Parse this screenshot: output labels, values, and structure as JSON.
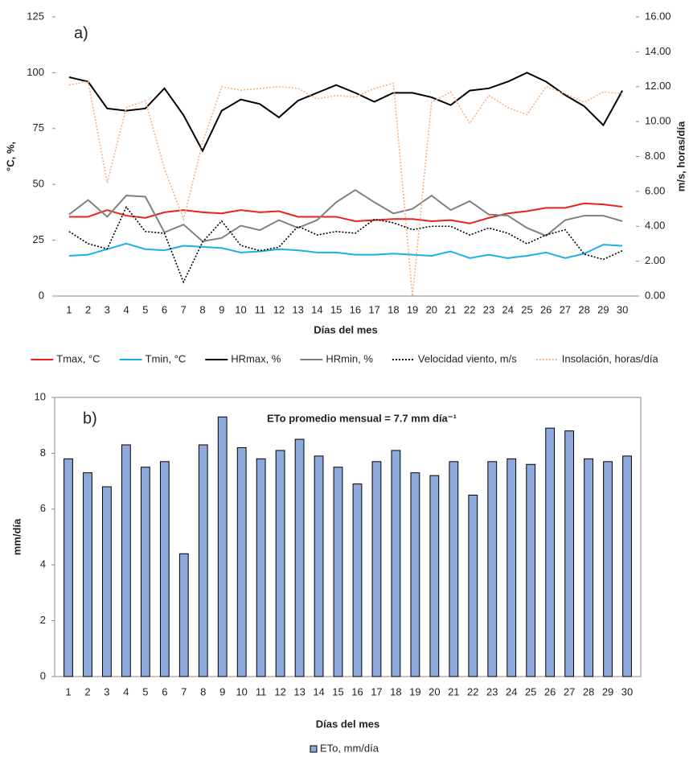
{
  "chart_data": [
    {
      "type": "line",
      "panel_label": "a)",
      "x_label": "Días del mes",
      "y_label": "°C, %,",
      "y2_label": "m/s, horas/día",
      "categories": [
        "1",
        "2",
        "3",
        "4",
        "5",
        "6",
        "7",
        "8",
        "9",
        "10",
        "11",
        "12",
        "13",
        "14",
        "15",
        "16",
        "17",
        "18",
        "19",
        "20",
        "21",
        "22",
        "23",
        "24",
        "25",
        "26",
        "27",
        "28",
        "29",
        "30"
      ],
      "ylim": [
        0,
        125
      ],
      "yticks": [
        0,
        25,
        50,
        75,
        100,
        125
      ],
      "y2lim": [
        0,
        16
      ],
      "y2ticks": [
        {
          "value": 0,
          "label": "0.00"
        },
        {
          "value": 2,
          "label": "2.00"
        },
        {
          "value": 4,
          "label": "4.00"
        },
        {
          "value": 6,
          "label": "6.00"
        },
        {
          "value": 8,
          "label": "8.00"
        },
        {
          "value": 10,
          "label": "10.00"
        },
        {
          "value": 12,
          "label": "12.00"
        },
        {
          "value": 14,
          "label": "14.00"
        },
        {
          "value": 16,
          "label": "16.00"
        }
      ],
      "legend": "bottom",
      "series": [
        {
          "name": "Tmax, °C",
          "color": "#e8231f",
          "dash": "solid",
          "values": [
            35.5,
            35.5,
            38.5,
            36,
            35,
            37.5,
            38.5,
            37.5,
            37,
            38.5,
            37.5,
            38,
            35.5,
            35.5,
            35.5,
            33.5,
            34,
            34.5,
            34.5,
            33.5,
            34,
            32.5,
            35,
            37,
            38,
            39.5,
            39.5,
            41.5,
            41,
            40
          ]
        },
        {
          "name": "Tmin, °C",
          "color": "#1ab0e8",
          "dash": "solid",
          "values": [
            18,
            18.5,
            21,
            23.5,
            21,
            20.5,
            22.5,
            22,
            21.5,
            19.5,
            20,
            21,
            20.5,
            19.5,
            19.5,
            18.5,
            18.5,
            19,
            18.5,
            18,
            20,
            17,
            18.5,
            17,
            18,
            19.5,
            17,
            19,
            23,
            22.5
          ]
        },
        {
          "name": "HRmax, %",
          "color": "#000000",
          "dash": "solid",
          "values": [
            98,
            96,
            84,
            83,
            84,
            93,
            81,
            65,
            83,
            88,
            86,
            80,
            87.5,
            91,
            94.5,
            91,
            87,
            91,
            91,
            89,
            85.5,
            92,
            93,
            96,
            100,
            96,
            90,
            85,
            76.5,
            92
          ]
        },
        {
          "name": "HRmin, %",
          "color": "#808080",
          "dash": "solid",
          "values": [
            36.5,
            43,
            35.5,
            45,
            44.5,
            28.5,
            32,
            24.5,
            26,
            31.5,
            29.5,
            34,
            30.5,
            34,
            42,
            47.5,
            42,
            37,
            39,
            45,
            38.5,
            42.5,
            36.5,
            36,
            30.5,
            27,
            34,
            36,
            36,
            33.5
          ]
        },
        {
          "name": "Velocidad viento, m/s",
          "color": "#000000",
          "dash": "dotted",
          "axis": "y2",
          "values": [
            3.7,
            3.0,
            2.7,
            5.1,
            3.7,
            3.6,
            0.8,
            3.1,
            4.3,
            2.9,
            2.6,
            2.8,
            4.0,
            3.5,
            3.7,
            3.6,
            4.4,
            4.2,
            3.8,
            4.0,
            4.0,
            3.5,
            3.9,
            3.6,
            3.0,
            3.5,
            3.8,
            2.4,
            2.1,
            2.6
          ]
        },
        {
          "name": "Insolación, horas/día",
          "color": "#f4b183",
          "dash": "dotted",
          "axis": "y2",
          "values": [
            12.1,
            12.3,
            6.5,
            10.8,
            11.2,
            7.3,
            4.4,
            8.8,
            12.0,
            11.8,
            11.9,
            12.0,
            11.9,
            11.3,
            11.5,
            11.4,
            11.9,
            12.2,
            0,
            11.1,
            11.7,
            9.9,
            11.5,
            10.8,
            10.4,
            12.0,
            11.6,
            11.1,
            11.7,
            11.6
          ]
        }
      ]
    },
    {
      "type": "bar",
      "panel_label": "b)",
      "annotation": "ETo promedio mensual = 7.7 mm día⁻¹",
      "x_label": "Días del mes",
      "y_label": "mm/día",
      "categories": [
        "1",
        "2",
        "3",
        "4",
        "5",
        "6",
        "7",
        "8",
        "9",
        "10",
        "11",
        "12",
        "13",
        "14",
        "15",
        "16",
        "17",
        "18",
        "19",
        "20",
        "21",
        "22",
        "23",
        "24",
        "25",
        "26",
        "27",
        "28",
        "29",
        "30"
      ],
      "ylim": [
        0,
        10
      ],
      "yticks": [
        0,
        2,
        4,
        6,
        8,
        10
      ],
      "legend": "bottom",
      "series": [
        {
          "name": "ETo, mm/día",
          "color": "#8ea9db",
          "values": [
            7.8,
            7.3,
            6.8,
            8.3,
            7.5,
            7.7,
            4.4,
            8.3,
            9.3,
            8.2,
            7.8,
            8.1,
            8.5,
            7.9,
            7.5,
            6.9,
            7.7,
            8.1,
            7.3,
            7.2,
            7.7,
            6.5,
            7.7,
            7.8,
            7.6,
            8.9,
            8.8,
            7.8,
            7.7,
            7.9
          ]
        }
      ]
    }
  ]
}
